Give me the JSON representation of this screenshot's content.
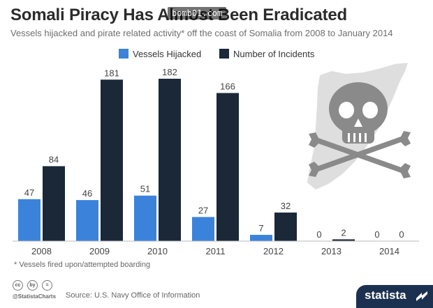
{
  "header": {
    "title": "Somali Piracy Has Almost Been Eradicated",
    "watermark": "bomb01.com",
    "subtitle": "Vessels hijacked and pirate related activity* off the coast of Somalia from 2008 to January 2014"
  },
  "footnote": "* Vessels fired upon/attempted boarding",
  "footer": {
    "handle": "@StatistaCharts",
    "source": "Source: U.S. Navy Office of Information",
    "brand": "statista",
    "license_icons": [
      "cc",
      "by",
      "="
    ]
  },
  "colors": {
    "hijacked": "#3b82db",
    "incidents": "#1a2838",
    "brand_bg": "#1c3150",
    "decoration_gray": "#d9d9d9"
  },
  "decoration": "somalia-map-skull-crossbones",
  "chart_data": {
    "type": "bar",
    "categories": [
      "2008",
      "2009",
      "2010",
      "2011",
      "2012",
      "2013",
      "2014"
    ],
    "series": [
      {
        "name": "Vessels Hijacked",
        "values": [
          47,
          46,
          51,
          27,
          7,
          0,
          0
        ]
      },
      {
        "name": "Number of Incidents",
        "values": [
          84,
          181,
          182,
          166,
          32,
          2,
          0
        ]
      }
    ],
    "ylim": [
      0,
      182
    ],
    "legend": "top-center",
    "grid": false,
    "data_labels": true
  }
}
